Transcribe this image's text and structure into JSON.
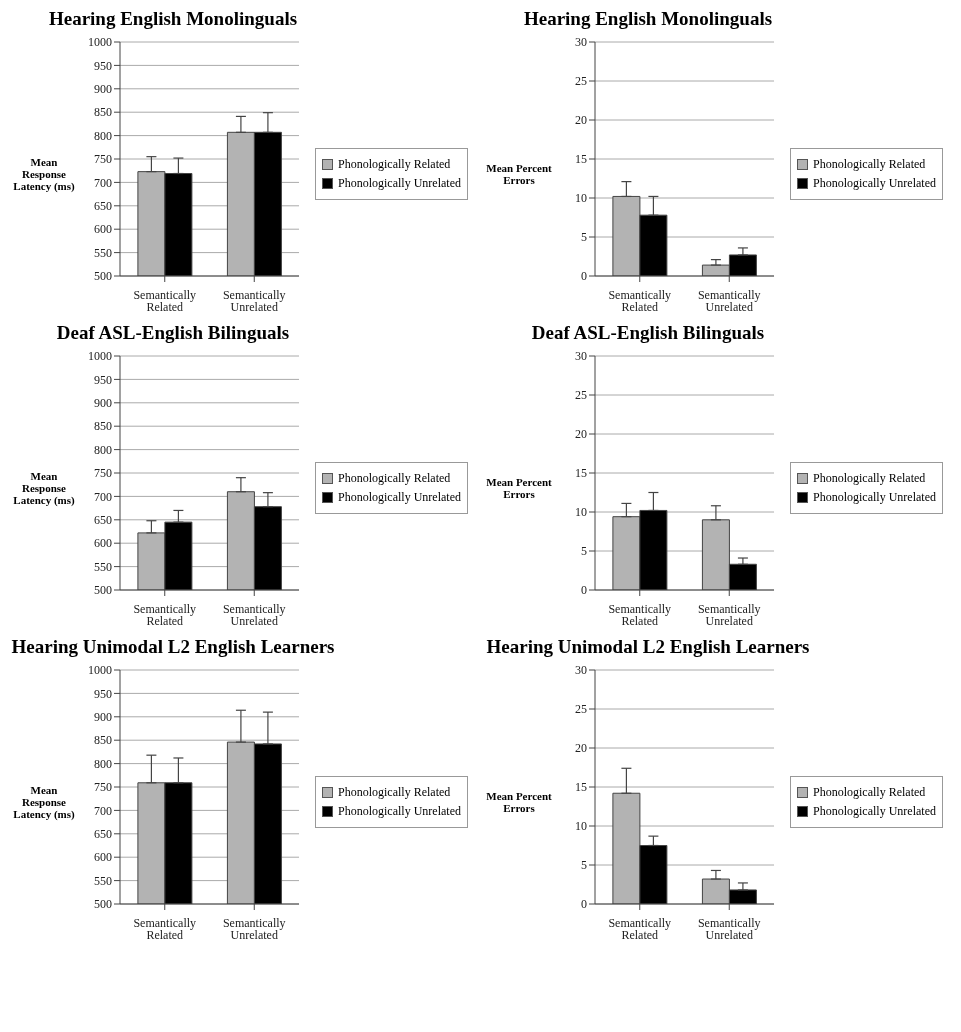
{
  "chart_data": [
    {
      "type": "bar",
      "title": "Hearing English Monolinguals",
      "ylabel": "Mean Response Latency (ms)",
      "categories": [
        "Semantically Related",
        "Semantically Unrelated"
      ],
      "series": [
        {
          "name": "Phonologically Related",
          "color": "#b3b3b3",
          "values": [
            723,
            807
          ],
          "errors": [
            [
              723,
              755
            ],
            [
              807,
              841
            ]
          ]
        },
        {
          "name": "Phonologically Unrelated",
          "color": "#000000",
          "values": [
            719,
            807
          ],
          "errors": [
            [
              719,
              752
            ],
            [
              807,
              849
            ]
          ]
        }
      ],
      "ylim": [
        500,
        1000
      ],
      "yticks": [
        500,
        550,
        600,
        650,
        700,
        750,
        800,
        850,
        900,
        950,
        1000
      ],
      "grid": "y",
      "legend": "right"
    },
    {
      "type": "bar",
      "title": "Hearing English Monolinguals",
      "ylabel": "Mean Percent Errors",
      "categories": [
        "Semantically Related",
        "Semantically Unrelated"
      ],
      "series": [
        {
          "name": "Phonologically Related",
          "color": "#b3b3b3",
          "values": [
            10.2,
            1.4
          ],
          "errors": [
            [
              10.2,
              12.1
            ],
            [
              1.4,
              2.1
            ]
          ]
        },
        {
          "name": "Phonologically Unrelated",
          "color": "#000000",
          "values": [
            7.8,
            2.7
          ],
          "errors": [
            [
              7.8,
              10.2
            ],
            [
              2.7,
              3.6
            ]
          ]
        }
      ],
      "ylim": [
        0,
        30
      ],
      "yticks": [
        0,
        5,
        10,
        15,
        20,
        25,
        30
      ],
      "grid": "y",
      "legend": "right"
    },
    {
      "type": "bar",
      "title": "Deaf ASL-English Bilinguals",
      "ylabel": "Mean Response Latency (ms)",
      "categories": [
        "Semantically Related",
        "Semantically Unrelated"
      ],
      "series": [
        {
          "name": "Phonologically Related",
          "color": "#b3b3b3",
          "values": [
            622,
            710
          ],
          "errors": [
            [
              622,
              648
            ],
            [
              710,
              740
            ]
          ]
        },
        {
          "name": "Phonologically Unrelated",
          "color": "#000000",
          "values": [
            645,
            678
          ],
          "errors": [
            [
              645,
              670
            ],
            [
              678,
              708
            ]
          ]
        }
      ],
      "ylim": [
        500,
        1000
      ],
      "yticks": [
        500,
        550,
        600,
        650,
        700,
        750,
        800,
        850,
        900,
        950,
        1000
      ],
      "grid": "y",
      "legend": "right"
    },
    {
      "type": "bar",
      "title": "Deaf ASL-English Bilinguals",
      "ylabel": "Mean Percent Errors",
      "categories": [
        "Semantically Related",
        "Semantically Unrelated"
      ],
      "series": [
        {
          "name": "Phonologically Related",
          "color": "#b3b3b3",
          "values": [
            9.4,
            9.0
          ],
          "errors": [
            [
              9.4,
              11.1
            ],
            [
              9.0,
              10.8
            ]
          ]
        },
        {
          "name": "Phonologically Unrelated",
          "color": "#000000",
          "values": [
            10.2,
            3.3
          ],
          "errors": [
            [
              10.2,
              12.5
            ],
            [
              3.3,
              4.1
            ]
          ]
        }
      ],
      "ylim": [
        0,
        30
      ],
      "yticks": [
        0,
        5,
        10,
        15,
        20,
        25,
        30
      ],
      "grid": "y",
      "legend": "right"
    },
    {
      "type": "bar",
      "title": "Hearing Unimodal L2 English Learners",
      "ylabel": "Mean Response Latency (ms)",
      "categories": [
        "Semantically Related",
        "Semantically Unrelated"
      ],
      "series": [
        {
          "name": "Phonologically Related",
          "color": "#b3b3b3",
          "values": [
            759,
            846
          ],
          "errors": [
            [
              759,
              818
            ],
            [
              846,
              914
            ]
          ]
        },
        {
          "name": "Phonologically Unrelated",
          "color": "#000000",
          "values": [
            759,
            842
          ],
          "errors": [
            [
              759,
              812
            ],
            [
              842,
              910
            ]
          ]
        }
      ],
      "ylim": [
        500,
        1000
      ],
      "yticks": [
        500,
        550,
        600,
        650,
        700,
        750,
        800,
        850,
        900,
        950,
        1000
      ],
      "grid": "y",
      "legend": "right"
    },
    {
      "type": "bar",
      "title": "Hearing Unimodal L2 English Learners",
      "ylabel": "Mean Percent Errors",
      "categories": [
        "Semantically Related",
        "Semantically Unrelated"
      ],
      "series": [
        {
          "name": "Phonologically Related",
          "color": "#b3b3b3",
          "values": [
            14.2,
            3.2
          ],
          "errors": [
            [
              14.2,
              17.4
            ],
            [
              3.2,
              4.3
            ]
          ]
        },
        {
          "name": "Phonologically Unrelated",
          "color": "#000000",
          "values": [
            7.5,
            1.8
          ],
          "errors": [
            [
              7.5,
              8.7
            ],
            [
              1.8,
              2.7
            ]
          ]
        }
      ],
      "ylim": [
        0,
        30
      ],
      "yticks": [
        0,
        5,
        10,
        15,
        20,
        25,
        30
      ],
      "grid": "y",
      "legend": "right"
    }
  ]
}
